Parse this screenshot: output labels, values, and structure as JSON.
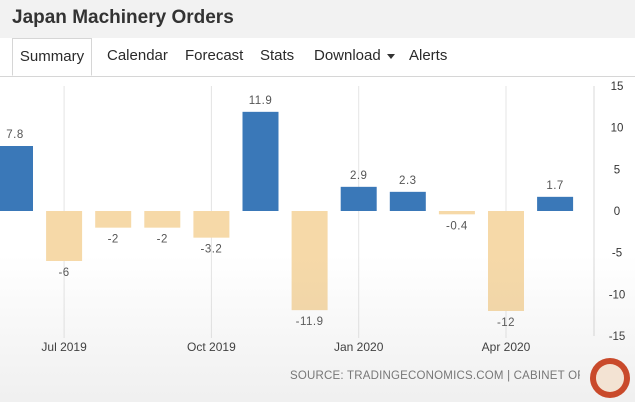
{
  "header": {
    "title": "Japan Machinery Orders"
  },
  "tabs": [
    {
      "label": "Summary"
    },
    {
      "label": "Calendar"
    },
    {
      "label": "Forecast"
    },
    {
      "label": "Stats"
    },
    {
      "label": "Download"
    },
    {
      "label": "Alerts"
    }
  ],
  "source": "SOURCE: TRADINGECONOMICS.COM | CABINET OFFICE, JA",
  "colors": {
    "positive": "#3a78b8",
    "negative": "#f6d9a8",
    "label": "#555555",
    "grid": "#e4e4e4"
  },
  "chart_data": {
    "type": "bar",
    "title": "",
    "xlabel": "",
    "ylabel": "",
    "ylim": [
      -15,
      15
    ],
    "yticks": [
      15,
      10,
      5,
      0,
      -5,
      -10,
      -15
    ],
    "categories": [
      "Jun 2019",
      "Jul 2019",
      "Aug 2019",
      "Sep 2019",
      "Oct 2019",
      "Nov 2019",
      "Dec 2019",
      "Jan 2020",
      "Feb 2020",
      "Mar 2020",
      "Apr 2020",
      "May 2020"
    ],
    "values": [
      7.8,
      -6,
      -2,
      -2,
      -3.2,
      11.9,
      -11.9,
      2.9,
      2.3,
      -0.4,
      -12,
      1.7
    ],
    "value_labels": [
      "7.8",
      "-6",
      "-2",
      "-2",
      "-3.2",
      "11.9",
      "-11.9",
      "2.9",
      "2.3",
      "-0.4",
      "-12",
      "1.7"
    ],
    "xtick_labels": [
      {
        "category_index": 1,
        "label": "Jul 2019"
      },
      {
        "category_index": 4,
        "label": "Oct 2019"
      },
      {
        "category_index": 7,
        "label": "Jan 2020"
      },
      {
        "category_index": 10,
        "label": "Apr 2020"
      }
    ],
    "grid": "vertical",
    "legend": "none"
  }
}
